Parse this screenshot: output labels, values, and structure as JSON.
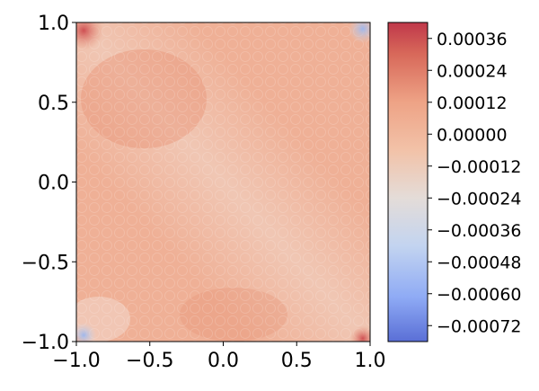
{
  "chart_data": {
    "type": "heatmap",
    "title": "",
    "xlabel": "",
    "ylabel": "",
    "xlim": [
      -1.0,
      1.0
    ],
    "ylim": [
      -1.0,
      1.0
    ],
    "x_ticks": [
      -1.0,
      -0.5,
      0.0,
      0.5,
      1.0
    ],
    "x_tick_labels": [
      "−1.0",
      "−0.5",
      "0.0",
      "0.5",
      "1.0"
    ],
    "y_ticks": [
      1.0,
      0.5,
      0.0,
      -0.5,
      -1.0
    ],
    "y_tick_labels": [
      "1.0",
      "0.5",
      "0.0",
      "−0.5",
      "−1.0"
    ],
    "colormap": "coolwarm",
    "colorbar": {
      "vmin": -0.00078,
      "vmax": 0.00042,
      "ticks": [
        0.00036,
        0.00024,
        0.00012,
        0.0,
        -0.00012,
        -0.00024,
        -0.00036,
        -0.00048,
        -0.0006,
        -0.00072
      ],
      "tick_labels": [
        "0.00036",
        "0.00024",
        "0.00012",
        "0.00000",
        "−0.00012",
        "−0.00024",
        "−0.00036",
        "−0.00048",
        "−0.00060",
        "−0.00072"
      ],
      "colors": [
        "#5a6fd6",
        "#8fabf5",
        "#c3d4f0",
        "#e4dcd8",
        "#f2c2a8",
        "#eea386",
        "#d8695a",
        "#c0384a"
      ]
    },
    "field_description_values": {
      "typical_level": 0.00012,
      "diagonal_band_level": 0.0,
      "corner_hotspots": [
        {
          "x": -0.95,
          "y": 0.95,
          "value": 0.0003
        },
        {
          "x": 0.95,
          "y": -0.98,
          "value": 0.0003
        }
      ],
      "corner_coldspots": [
        {
          "x": 0.95,
          "y": 0.96,
          "value": -0.0004
        },
        {
          "x": -0.95,
          "y": -0.96,
          "value": -0.0004
        }
      ]
    }
  }
}
